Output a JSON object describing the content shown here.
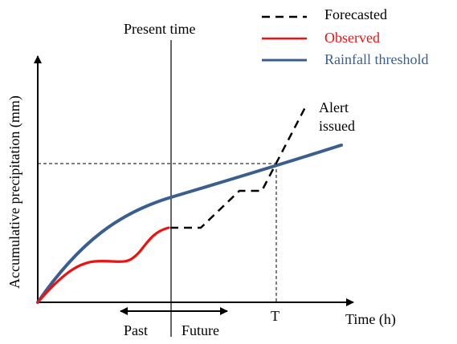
{
  "diagram": {
    "legend": [
      {
        "label": "Forecasted",
        "style": "dashed",
        "color": "#000000"
      },
      {
        "label": "Observed",
        "style": "solid",
        "color": "#ee1111"
      },
      {
        "label": "Rainfall threshold",
        "style": "solid",
        "color": "#3a5f8f"
      }
    ],
    "y_axis_label": "Accumulative precipitation (mm)",
    "x_axis_label": "Time (h)",
    "present_time_label": "Present time",
    "alert_label_line1": "Alert",
    "alert_label_line2": "issued",
    "t_label": "T",
    "past_label": "Past",
    "future_label": "Future",
    "colors": {
      "threshold": "#3a5f8f",
      "observed": "#ee1111",
      "forecast": "#000000",
      "axes": "#000000"
    }
  }
}
